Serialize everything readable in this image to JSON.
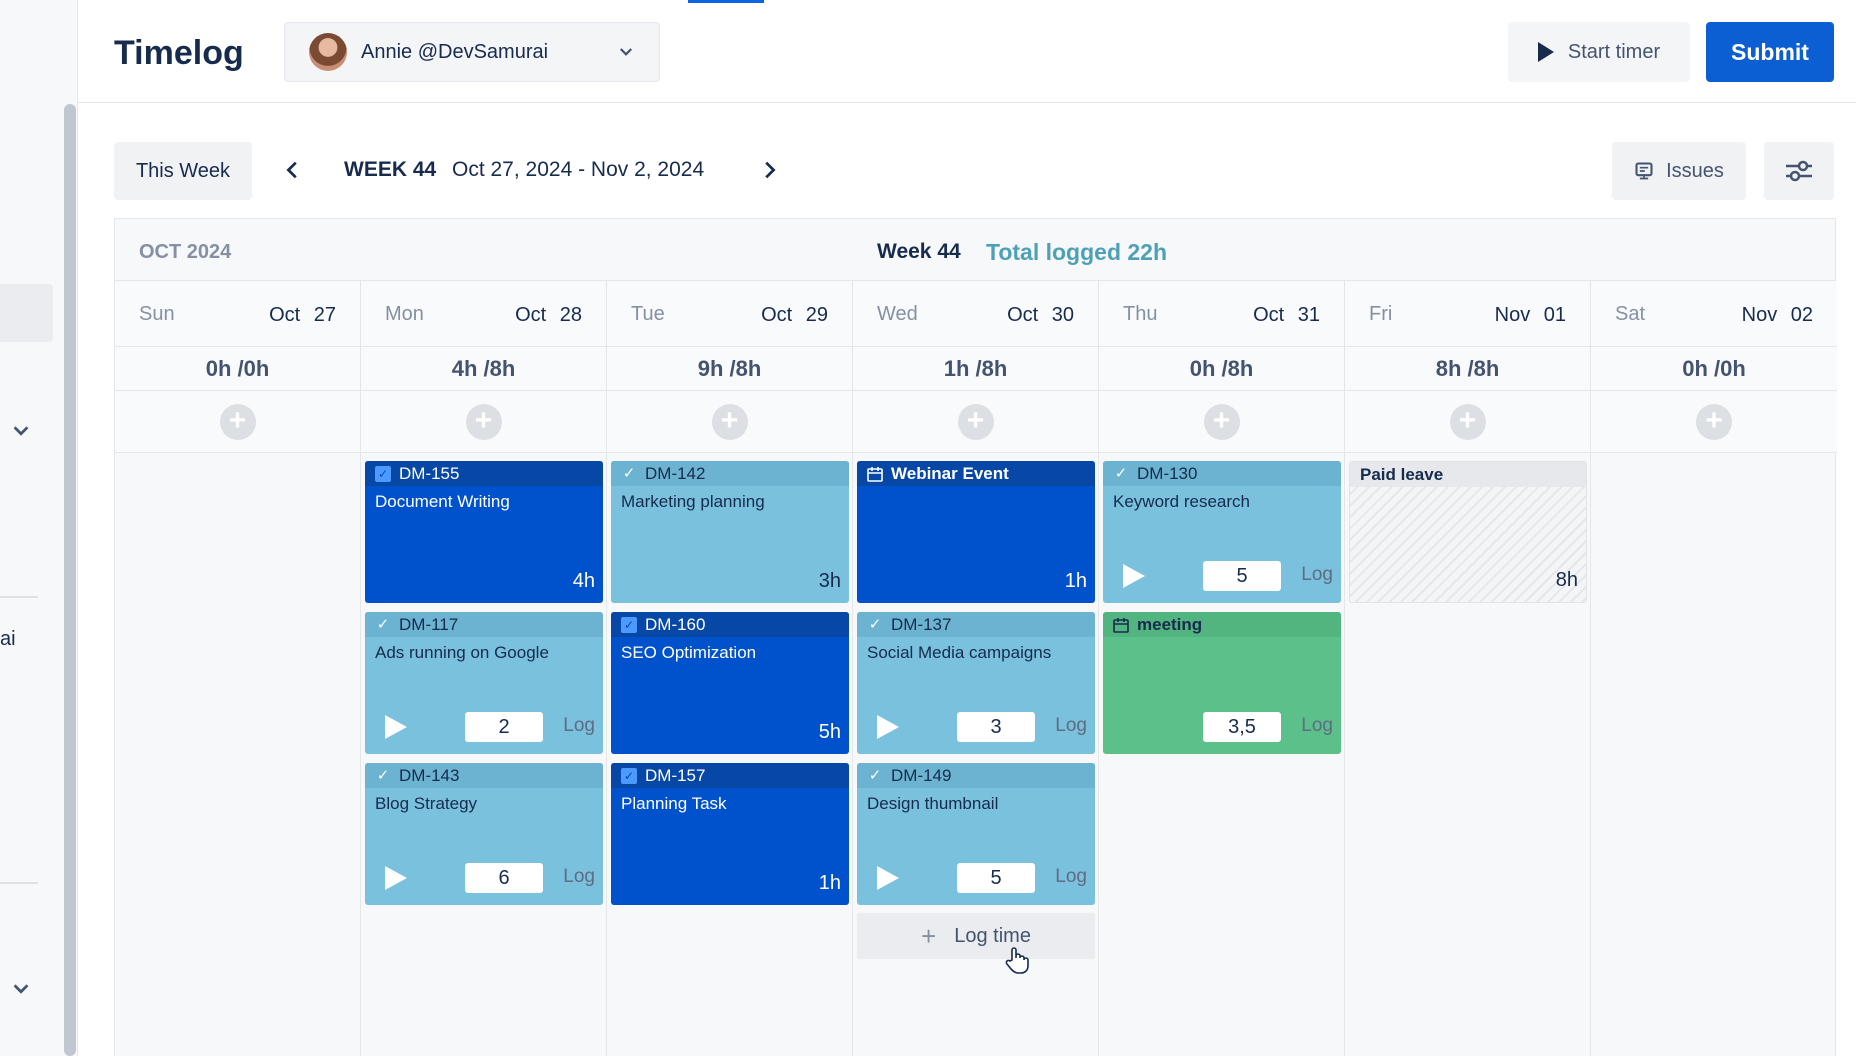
{
  "header": {
    "title": "Timelog",
    "user": "Annie @DevSamurai",
    "start_timer": "Start timer",
    "submit": "Submit"
  },
  "sidebar": {
    "partial_text": "ai"
  },
  "toolbar": {
    "this_week": "This Week",
    "week_label": "WEEK 44",
    "week_range": "Oct 27, 2024 - Nov 2, 2024",
    "issues": "Issues"
  },
  "calendar": {
    "month": "OCT 2024",
    "week": "Week 44",
    "total": "Total logged 22h",
    "days": [
      {
        "dow": "Sun",
        "date": "Oct 27",
        "hours": "0h /0h"
      },
      {
        "dow": "Mon",
        "date": "Oct 28",
        "hours": "4h /8h"
      },
      {
        "dow": "Tue",
        "date": "Oct 29",
        "hours": "9h /8h"
      },
      {
        "dow": "Wed",
        "date": "Oct 30",
        "hours": "1h /8h"
      },
      {
        "dow": "Thu",
        "date": "Oct 31",
        "hours": "0h /8h"
      },
      {
        "dow": "Fri",
        "date": "Nov 01",
        "hours": "8h /8h"
      },
      {
        "dow": "Sat",
        "date": "Nov 02",
        "hours": "0h /0h"
      }
    ]
  },
  "cards": {
    "mon": [
      {
        "key": "DM-155",
        "title": "Document Writing",
        "hours": "4h"
      },
      {
        "key": "DM-117",
        "title": "Ads running on Google",
        "value": "2",
        "log": "Log"
      },
      {
        "key": "DM-143",
        "title": "Blog Strategy",
        "value": "6",
        "log": "Log"
      }
    ],
    "tue": [
      {
        "key": "DM-142",
        "title": "Marketing planning",
        "hours": "3h"
      },
      {
        "key": "DM-160",
        "title": "SEO Optimization",
        "hours": "5h"
      },
      {
        "key": "DM-157",
        "title": "Planning Task",
        "hours": "1h"
      }
    ],
    "wed": [
      {
        "key": "Webinar Event",
        "hours": "1h"
      },
      {
        "key": "DM-137",
        "title": "Social Media campaigns",
        "value": "3",
        "log": "Log"
      },
      {
        "key": "DM-149",
        "title": "Design thumbnail",
        "value": "5",
        "log": "Log"
      }
    ],
    "thu": [
      {
        "key": "DM-130",
        "title": "Keyword research",
        "value": "5",
        "log": "Log"
      },
      {
        "key": "meeting",
        "value": "3,5",
        "log": "Log"
      }
    ],
    "fri": [
      {
        "key": "Paid leave",
        "hours": "8h"
      }
    ]
  },
  "log_time": "Log time",
  "colors": {
    "primary": "#0c5fd3",
    "dark_card": "#0052cc",
    "light_card": "#79c1dd",
    "meeting_card": "#5bc08a",
    "total_text": "#4ea1b5"
  }
}
